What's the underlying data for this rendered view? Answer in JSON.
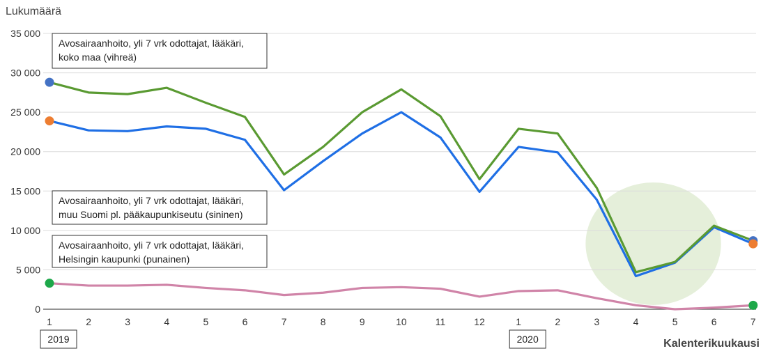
{
  "chart_data": {
    "type": "line",
    "ylabel": "Lukumäärä",
    "xlabel": "Kalenterikuukausi",
    "ylim": [
      0,
      35000
    ],
    "yticks": [
      0,
      5000,
      10000,
      15000,
      20000,
      25000,
      30000,
      35000
    ],
    "ytick_labels": [
      "0",
      "5 000",
      "10 000",
      "15 000",
      "20 000",
      "25 000",
      "30 000",
      "35 000"
    ],
    "categories": [
      "1",
      "2",
      "3",
      "4",
      "5",
      "6",
      "7",
      "8",
      "9",
      "10",
      "11",
      "12",
      "1",
      "2",
      "3",
      "4",
      "5",
      "6",
      "7"
    ],
    "year_labels": [
      {
        "label": "2019",
        "index": 0
      },
      {
        "label": "2020",
        "index": 12
      }
    ],
    "grid": true,
    "series": [
      {
        "color": "#5a9a32",
        "endpoint_color": "#4472c4",
        "values": [
          28800,
          27500,
          27300,
          28100,
          26200,
          24400,
          17100,
          20600,
          25000,
          27900,
          24500,
          16500,
          22900,
          22300,
          15400,
          4700,
          6000,
          10600,
          8700
        ]
      },
      {
        "color": "#1f6fe5",
        "endpoint_color": "#ed7d31",
        "values": [
          23900,
          22700,
          22600,
          23200,
          22900,
          21500,
          15100,
          18800,
          22300,
          25000,
          21800,
          14900,
          20600,
          19900,
          13900,
          4200,
          5900,
          10400,
          8300
        ]
      },
      {
        "color": "#d084a8",
        "endpoint_color": "#1ea84a",
        "values": [
          3300,
          3000,
          3000,
          3100,
          2700,
          2400,
          1800,
          2100,
          2700,
          2800,
          2600,
          1600,
          2300,
          2400,
          1400,
          500,
          0,
          200,
          500
        ]
      }
    ],
    "annotations": [
      {
        "lines": [
          "Avosairaanhoito, yli 7 vrk odottajat, lääkäri,",
          "koko maa (vihreä)"
        ]
      },
      {
        "lines": [
          "Avosairaanhoito, yli 7 vrk odottajat, lääkäri,",
          "muu Suomi pl. pääkaupunkiseutu (sininen)"
        ]
      },
      {
        "lines": [
          "Avosairaanhoito, yli 7 vrk odottajat, lääkäri,",
          "Helsingin kaupunki (punainen)"
        ]
      }
    ],
    "highlight": {
      "from_index": 14,
      "to_index": 17,
      "color": "#e5efda"
    }
  }
}
